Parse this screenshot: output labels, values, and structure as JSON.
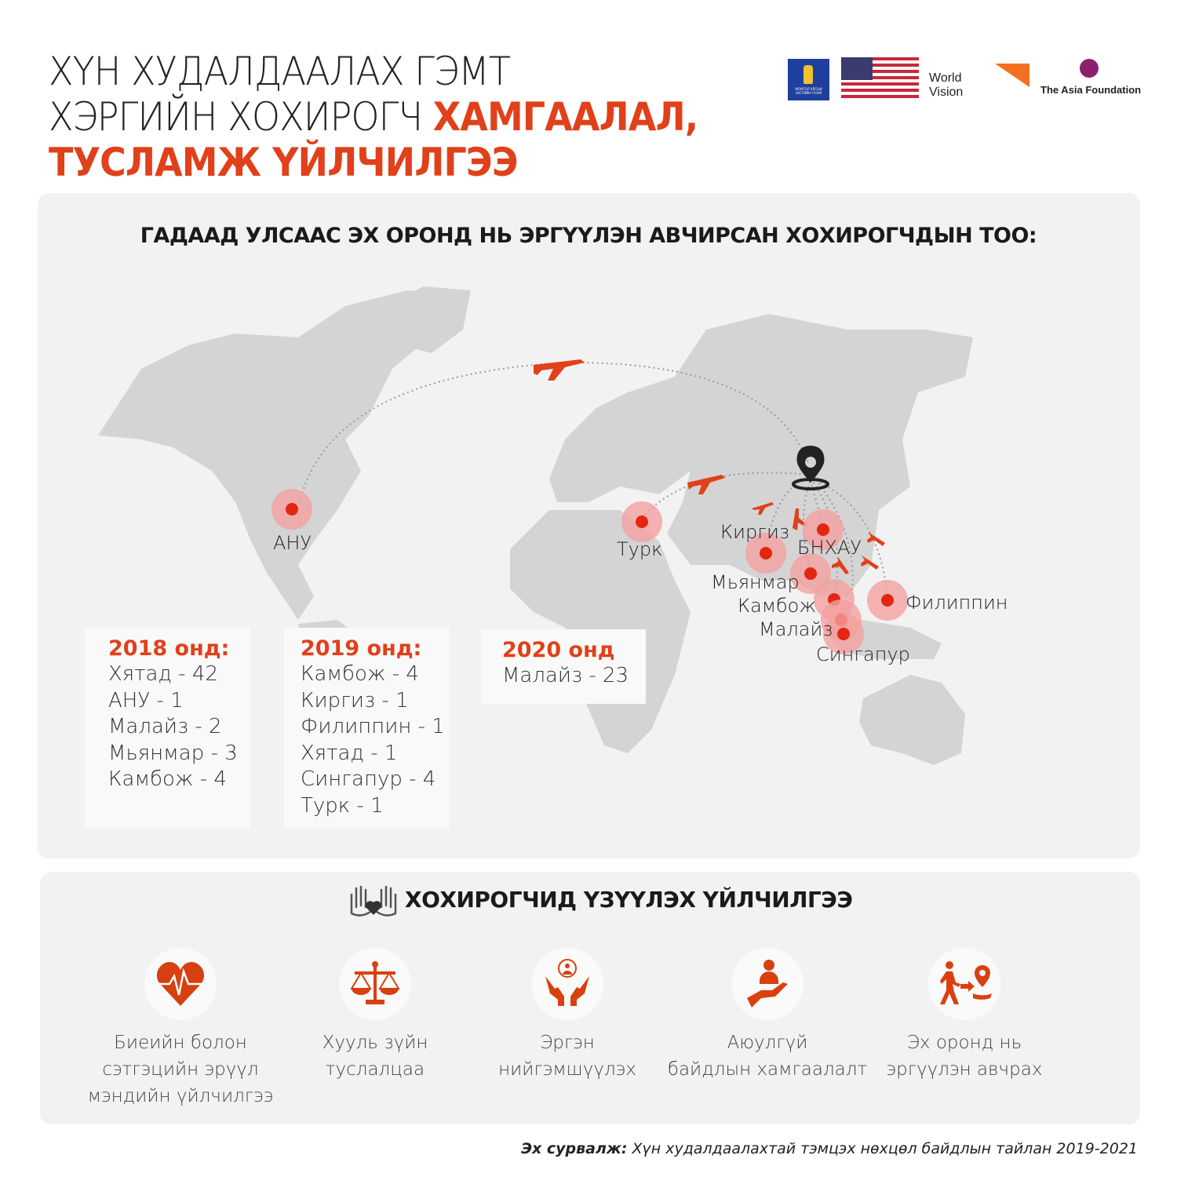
{
  "title": {
    "line1": "ХҮН ХУДАЛДААЛАХ ГЭМТ",
    "line2_plain": "ХЭРГИЙН ХОХИРОГЧ ",
    "line2_highlight": "ХАМГААЛАЛ,",
    "line3": "ТУСЛАМЖ ҮЙЛЧИЛГЭЭ"
  },
  "logos": {
    "mongolia": "МОНГОЛ УЛСЫН ЗАСГИЙН ГАЗАР",
    "world_vision": "World Vision",
    "asia_foundation": "The Asia Foundation"
  },
  "colors": {
    "accent": "#e0401a",
    "panel": "#f2f2f2",
    "land": "#d4d4d4",
    "marker_halo": "#f4a0a0"
  },
  "map": {
    "heading": "ГАДААД УЛСААС ЭХ ОРОНД НЬ ЭРГҮҮЛЭН АВЧИРСАН ХОХИРОГЧДЫН ТОО:",
    "origin_icon": "location-pin-icon",
    "countries": [
      "АНУ",
      "Турк",
      "Киргиз",
      "БНХАУ",
      "Мьянмар",
      "Камбож",
      "Малайз",
      "Сингапур",
      "Филиппин"
    ]
  },
  "years": [
    {
      "year": "2018 онд:",
      "items": [
        "Хятад - 42",
        "АНУ - 1",
        "Малайз - 2",
        "Мьянмар - 3",
        "Камбож - 4"
      ]
    },
    {
      "year": "2019 онд:",
      "items": [
        "Камбож - 4",
        "Киргиз - 1",
        "Филиппин - 1",
        "Хятад - 1",
        "Сингапур - 4",
        "Турк - 1"
      ]
    },
    {
      "year": "2020 онд",
      "items": [
        "Малайз - 23"
      ]
    }
  ],
  "services": {
    "heading": "ХОХИРОГЧИД ҮЗҮҮЛЭХ ҮЙЛЧИЛГЭЭ",
    "items": [
      {
        "icon": "heart-pulse-icon",
        "lines": [
          "Биеийн болон",
          "сэтгэцийн эрүүл",
          "мэндийн үйлчилгээ"
        ]
      },
      {
        "icon": "scales-icon",
        "lines": [
          "Хууль зүйн",
          "туслалцаа"
        ]
      },
      {
        "icon": "hands-person-icon",
        "lines": [
          "Эргэн",
          "нийгэмшүүлэх"
        ]
      },
      {
        "icon": "hand-person-icon",
        "lines": [
          "Аюулгүй",
          "байдлын хамгаалалт"
        ]
      },
      {
        "icon": "walk-to-location-icon",
        "lines": [
          "Эх оронд нь",
          "эргүүлэн авчрах"
        ]
      }
    ]
  },
  "source": {
    "label": "Эх сурвалж:",
    "text": " Хүн худалдаалахтай тэмцэх нөхцөл байдлын тайлан 2019-2021"
  }
}
